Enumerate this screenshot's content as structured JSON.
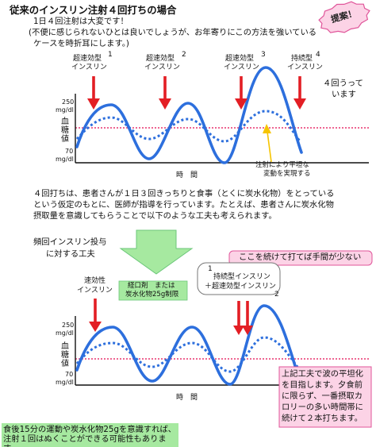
{
  "header": {
    "title": "従来のインスリン注射４回打ちの場合",
    "subtitle": "1日４回注射は大変です！",
    "note": [
      "(不便に感じられないひとは良いでしょうが、お年寄りにこの方法を強いている",
      "ケースを時折耳にします。)"
    ]
  },
  "proposal_badge": "提案！",
  "chart1": {
    "injections": [
      {
        "number": "1",
        "type": "超速効型",
        "name": "インスリン"
      },
      {
        "number": "2",
        "type": "超速効型",
        "name": "インスリン"
      },
      {
        "number": "3",
        "type": "超速効型",
        "name": "インスリン"
      },
      {
        "number": "4",
        "type": "持続型",
        "name": "インスリン"
      }
    ],
    "side_note": [
      "４回うって",
      "います"
    ],
    "y_axis": {
      "top_value": "250",
      "bottom_value": "70",
      "unit": "mg/dl",
      "label": "血糖値"
    },
    "x_label": "時　間",
    "annotation": [
      "注射により平坦な",
      "変動を実現する"
    ]
  },
  "explanation": [
    "４回打ちは、患者さんが１日３回きっちりと食事（とくに炭水化物）をとっている",
    "という仮定のもとに、医師が指導を行っています。たとえば、患者さんに炭水化物",
    "摂取量を意識してもらうことで以下のような工夫も考えられます。"
  ],
  "improvement": {
    "title": [
      "頻回インスリン投与",
      "に対する工夫"
    ],
    "tip": "ここを続けて打てば手間が少ない",
    "combo": {
      "number_1": "1",
      "lines": [
        "持続型インスリン",
        "＋超速効型インスリン"
      ],
      "number_2": "2"
    },
    "rapid": [
      "速効性",
      "インスリン"
    ],
    "oral": [
      "経口剤　または",
      "炭水化物25g制限"
    ]
  },
  "chart2": {
    "y_axis": {
      "top_value": "250",
      "bottom_value": "70",
      "unit": "mg/dl",
      "label": "血糖値"
    },
    "x_label": "時　間"
  },
  "summary_note": [
    "上記工夫で波の平坦化",
    "を目指します。夕食前",
    "に限らず、一番摂取カ",
    "ロリーの多い時間帯に",
    "続けて２本打ちます。"
  ],
  "bottom_note": [
    "食後15分の運動や炭水化物25gを意識すれば、",
    "注射１回はぬくことができる可能性もありま",
    "す"
  ],
  "colors": {
    "wave": "#2d6fdd",
    "arrow": "#e31e24",
    "target_line": "#e8336e",
    "highlight": "#f6c400",
    "green": "#a6e9a0",
    "green_border": "#6cc77a",
    "pink": "#fcd3e6",
    "pink_border": "#e0559a"
  }
}
